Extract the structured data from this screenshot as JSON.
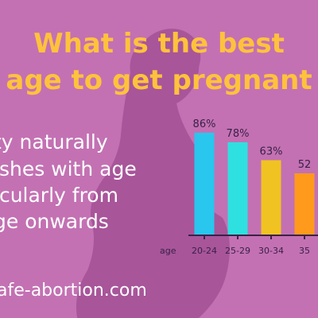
{
  "title_lines": [
    "What is the best",
    "age to get pregnant"
  ],
  "subtitle_lines": [
    "ty naturally",
    "ishes with age",
    "icularly from",
    "ge onwards"
  ],
  "website": "afe-abortion.com",
  "colors": {
    "background": "#c371b3",
    "silhouette": "#a8559a",
    "title": "#ffc23c",
    "text": "#ffffff",
    "axis": "#3a2147"
  },
  "chart_data": {
    "type": "bar",
    "xlabel": "age",
    "categories": [
      "20-24",
      "25-29",
      "30-34",
      "35"
    ],
    "values": [
      86,
      78,
      63,
      52
    ],
    "data_labels": [
      "86%",
      "78%",
      "63%",
      "52"
    ],
    "colors": [
      "#29c6ee",
      "#2fe0e0",
      "#f1c322",
      "#ff9a1c"
    ],
    "ylim": [
      0,
      100
    ],
    "grid": false
  }
}
